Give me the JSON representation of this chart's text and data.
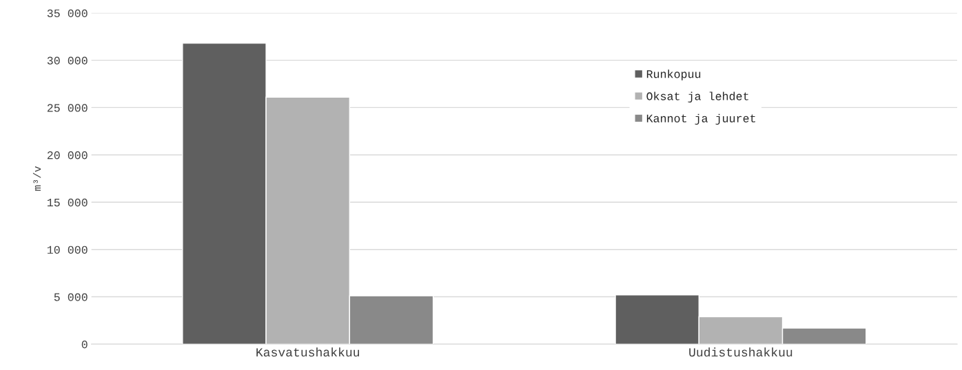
{
  "chart_data": {
    "type": "bar",
    "ylabel": "m³/v",
    "categories": [
      "Kasvatushakkuu",
      "Uudistushakkuu"
    ],
    "series": [
      {
        "name": "Runkopuu",
        "color": "#5f5f5f",
        "values": [
          31800,
          5200
        ]
      },
      {
        "name": "Oksat ja lehdet",
        "color": "#b2b2b2",
        "values": [
          26100,
          2900
        ]
      },
      {
        "name": "Kannot ja juuret",
        "color": "#898989",
        "values": [
          5100,
          1700
        ]
      }
    ],
    "ylim": [
      0,
      35000
    ],
    "yticks": [
      {
        "value": 0,
        "label": "0"
      },
      {
        "value": 5000,
        "label": "5 000"
      },
      {
        "value": 10000,
        "label": "10 000"
      },
      {
        "value": 15000,
        "label": "15 000"
      },
      {
        "value": 20000,
        "label": "20 000"
      },
      {
        "value": 25000,
        "label": "25 000"
      },
      {
        "value": 30000,
        "label": "30 000"
      },
      {
        "value": 35000,
        "label": "35 000"
      }
    ],
    "grid": "y",
    "legend": "top right"
  }
}
